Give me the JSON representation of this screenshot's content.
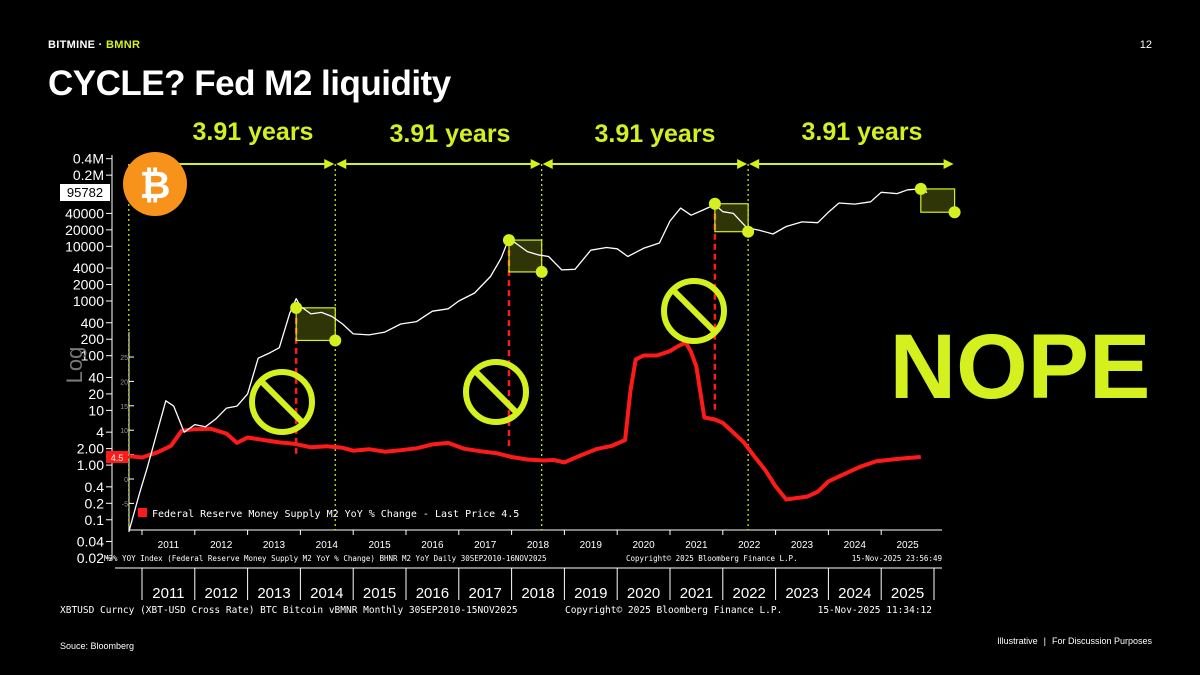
{
  "header": {
    "brand_company": "BITMINE",
    "brand_separator": " · ",
    "brand_ticker": "BMNR",
    "page_number": "12",
    "title": "CYCLE? Fed M2 liquidity"
  },
  "footer": {
    "source": "Souce: Bloomberg",
    "illustrative": "Illustrative",
    "separator": "|",
    "discussion": "For Discussion Purposes"
  },
  "colors": {
    "accent": "#d4f01e",
    "m2_line": "#ff1a1a",
    "btc_line": "#ffffff",
    "btc_badge": "#f7931a",
    "background": "#000000"
  },
  "chart_data": [
    {
      "type": "line",
      "id": "btc",
      "scale": "log",
      "yticks": [
        "0.4M",
        "0.2M",
        "40000",
        "20000",
        "10000",
        "4000",
        "2000",
        "1000",
        "400",
        "200",
        "100",
        "40",
        "20",
        "10",
        "4",
        "2.00",
        "1.00",
        "0.4",
        "0.2",
        "0.1",
        "0.04",
        "0.02"
      ],
      "ytick_values": [
        400000,
        200000,
        40000,
        20000,
        10000,
        4000,
        2000,
        1000,
        400,
        200,
        100,
        40,
        20,
        10,
        4,
        2,
        1,
        0.4,
        0.2,
        0.1,
        0.04,
        0.02
      ],
      "ylabel": "Log",
      "last_price_label": "95782",
      "xticks": [
        "2011",
        "2012",
        "2013",
        "2014",
        "2015",
        "2016",
        "2017",
        "2018",
        "2019",
        "2020",
        "2021",
        "2022",
        "2023",
        "2024",
        "2025"
      ],
      "x": [
        2010.75,
        2010.95,
        2011.1,
        2011.25,
        2011.45,
        2011.6,
        2011.8,
        2012.0,
        2012.2,
        2012.4,
        2012.6,
        2012.8,
        2013.0,
        2013.2,
        2013.4,
        2013.6,
        2013.8,
        2013.92,
        2014.0,
        2014.2,
        2014.4,
        2014.6,
        2014.8,
        2015.0,
        2015.3,
        2015.6,
        2015.9,
        2016.2,
        2016.5,
        2016.8,
        2017.0,
        2017.3,
        2017.6,
        2017.8,
        2017.95,
        2018.1,
        2018.3,
        2018.5,
        2018.7,
        2018.95,
        2019.2,
        2019.5,
        2019.8,
        2020.0,
        2020.2,
        2020.5,
        2020.8,
        2021.0,
        2021.2,
        2021.4,
        2021.6,
        2021.85,
        2022.0,
        2022.2,
        2022.45,
        2022.7,
        2022.95,
        2023.2,
        2023.5,
        2023.8,
        2024.0,
        2024.2,
        2024.5,
        2024.8,
        2025.0,
        2025.3,
        2025.5,
        2025.75,
        2025.87
      ],
      "values": [
        0.06,
        0.3,
        0.9,
        3,
        15,
        12,
        4,
        5.5,
        5,
        7,
        11,
        12,
        20,
        90,
        110,
        140,
        600,
        1100,
        800,
        580,
        620,
        520,
        380,
        250,
        240,
        270,
        380,
        420,
        650,
        720,
        1000,
        1400,
        2800,
        6000,
        14000,
        11000,
        8000,
        7000,
        6500,
        3700,
        3800,
        8500,
        9500,
        9000,
        6500,
        9200,
        11500,
        29000,
        50000,
        37000,
        45000,
        58000,
        43000,
        40000,
        22000,
        19500,
        16800,
        23000,
        28000,
        27000,
        42000,
        62000,
        59000,
        65000,
        97000,
        92000,
        108000,
        112000,
        95782
      ],
      "annotations": [
        {
          "label": "3.91 years"
        },
        {
          "label": "3.91 years"
        },
        {
          "label": "3.91 years"
        },
        {
          "label": "3.91 years"
        }
      ],
      "cycle_dates": [
        2010.75,
        2014.66,
        2018.57,
        2022.48,
        2026.39
      ],
      "peak_dates": [
        2013.92,
        2017.95,
        2021.85
      ],
      "peaks": [
        {
          "start_x": 2013.92,
          "start_y": 750,
          "end_x": 2014.66,
          "end_y": 190
        },
        {
          "start_x": 2017.95,
          "start_y": 13000,
          "end_x": 2018.57,
          "end_y": 3400
        },
        {
          "start_x": 2021.85,
          "start_y": 60000,
          "end_x": 2022.48,
          "end_y": 18500
        },
        {
          "start_x": 2025.75,
          "start_y": 112000,
          "end_x": 2026.39,
          "end_y": 42000
        }
      ],
      "footer_text": "XBTUSD Curncy (XBT-USD Cross Rate) BTC Bitcoin vBMNR Monthly 30SEP2010-15NOV2025",
      "copyright": "Copyright© 2025 Bloomberg Finance L.P.",
      "timestamp": "15-Nov-2025 11:34:12"
    },
    {
      "type": "line",
      "id": "m2",
      "yticks": [
        "25",
        "20",
        "15",
        "10",
        "5",
        "0",
        "-5"
      ],
      "ytick_values": [
        25,
        20,
        15,
        10,
        5,
        0,
        -5
      ],
      "last_price_label": "4.5",
      "xticks": [
        "2011",
        "2012",
        "2013",
        "2014",
        "2015",
        "2016",
        "2017",
        "2018",
        "2019",
        "2020",
        "2021",
        "2022",
        "2023",
        "2024",
        "2025"
      ],
      "legend": "Federal Reserve Money Supply M2 YoY % Change - Last Price 4.5",
      "x": [
        2010.75,
        2011.0,
        2011.3,
        2011.55,
        2011.75,
        2012.0,
        2012.3,
        2012.6,
        2012.8,
        2013.0,
        2013.3,
        2013.6,
        2013.9,
        2014.2,
        2014.5,
        2014.8,
        2015.0,
        2015.3,
        2015.6,
        2015.9,
        2016.2,
        2016.5,
        2016.8,
        2017.1,
        2017.4,
        2017.7,
        2018.0,
        2018.3,
        2018.6,
        2018.8,
        2019.0,
        2019.3,
        2019.6,
        2019.9,
        2020.15,
        2020.25,
        2020.35,
        2020.5,
        2020.75,
        2021.0,
        2021.15,
        2021.3,
        2021.4,
        2021.5,
        2021.65,
        2021.85,
        2022.0,
        2022.2,
        2022.4,
        2022.6,
        2022.8,
        2023.0,
        2023.2,
        2023.4,
        2023.6,
        2023.8,
        2024.0,
        2024.3,
        2024.6,
        2024.9,
        2025.2,
        2025.5,
        2025.75
      ],
      "values": [
        4.7,
        4.4,
        5.5,
        6.8,
        9.9,
        10.2,
        10.3,
        9.3,
        7.4,
        8.5,
        8.0,
        7.5,
        7.2,
        6.5,
        6.7,
        6.4,
        5.8,
        6.1,
        5.6,
        5.9,
        6.3,
        7.1,
        7.4,
        6.2,
        5.7,
        5.3,
        4.5,
        4.0,
        3.8,
        3.9,
        3.4,
        4.8,
        6.1,
        6.8,
        8.0,
        18.0,
        24.5,
        25.3,
        25.3,
        26.2,
        27.2,
        28.0,
        26.0,
        23.0,
        12.6,
        12.2,
        11.5,
        9.5,
        7.5,
        4.6,
        1.9,
        -1.5,
        -4.2,
        -3.9,
        -3.6,
        -2.6,
        -0.5,
        1.0,
        2.5,
        3.6,
        4.0,
        4.3,
        4.5
      ],
      "footer_text": "M2% YOY Index (Federal Reserve Money Supply M2 YoY % Change) BHNR M2 YoY Daily 30SEP2010-16NOV2025",
      "copyright": "Copyright© 2025 Bloomberg Finance L.P.",
      "timestamp": "15-Nov-2025 23:56:49"
    }
  ],
  "badges": {
    "bitcoin_symbol": "₿",
    "verdict": "NOPE",
    "prohibited_icon": "no-sign-icon"
  }
}
